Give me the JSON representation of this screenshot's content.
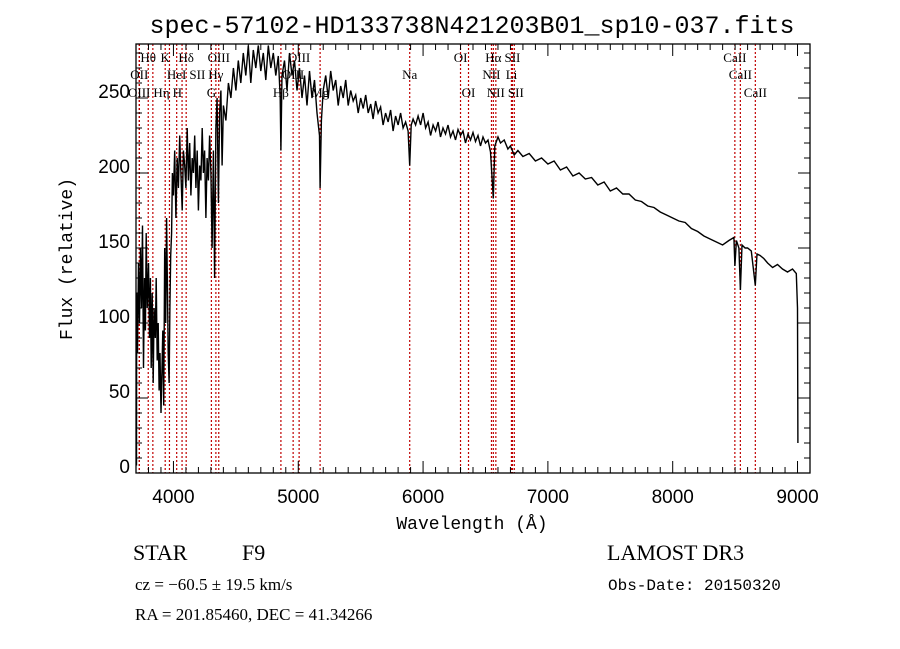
{
  "chart_data": {
    "type": "line",
    "title": "spec-57102-HD133738N421203B01_sp10-037.fits",
    "xlabel": "Wavelength (Å)",
    "ylabel": "Flux (relative)",
    "xlim": [
      3700,
      9100
    ],
    "ylim": [
      0,
      286
    ],
    "xticks": [
      4000,
      5000,
      6000,
      7000,
      8000,
      9000
    ],
    "yticks": [
      0,
      50,
      100,
      150,
      200,
      250
    ],
    "grid": false,
    "line_color": "#000000",
    "marker_color": "#c00000",
    "spectrum": [
      [
        3704,
        5
      ],
      [
        3706,
        120
      ],
      [
        3712,
        80
      ],
      [
        3720,
        140
      ],
      [
        3728,
        100
      ],
      [
        3736,
        150
      ],
      [
        3744,
        110
      ],
      [
        3752,
        165
      ],
      [
        3760,
        70
      ],
      [
        3768,
        130
      ],
      [
        3775,
        95
      ],
      [
        3782,
        160
      ],
      [
        3790,
        110
      ],
      [
        3800,
        140
      ],
      [
        3808,
        90
      ],
      [
        3815,
        130
      ],
      [
        3822,
        70
      ],
      [
        3830,
        120
      ],
      [
        3838,
        60
      ],
      [
        3845,
        110
      ],
      [
        3855,
        90
      ],
      [
        3862,
        130
      ],
      [
        3870,
        75
      ],
      [
        3878,
        100
      ],
      [
        3885,
        55
      ],
      [
        3892,
        80
      ],
      [
        3900,
        40
      ],
      [
        3908,
        70
      ],
      [
        3915,
        95
      ],
      [
        3922,
        45
      ],
      [
        3930,
        150
      ],
      [
        3938,
        100
      ],
      [
        3945,
        170
      ],
      [
        3952,
        120
      ],
      [
        3958,
        80
      ],
      [
        3965,
        60
      ],
      [
        3972,
        110
      ],
      [
        3978,
        145
      ],
      [
        3985,
        160
      ],
      [
        3992,
        200
      ],
      [
        4000,
        185
      ],
      [
        4010,
        215
      ],
      [
        4020,
        170
      ],
      [
        4030,
        210
      ],
      [
        4040,
        190
      ],
      [
        4050,
        225
      ],
      [
        4060,
        200
      ],
      [
        4070,
        175
      ],
      [
        4080,
        215
      ],
      [
        4090,
        205
      ],
      [
        4100,
        190
      ],
      [
        4110,
        230
      ],
      [
        4120,
        195
      ],
      [
        4130,
        220
      ],
      [
        4140,
        185
      ],
      [
        4150,
        210
      ],
      [
        4160,
        200
      ],
      [
        4170,
        225
      ],
      [
        4180,
        190
      ],
      [
        4190,
        215
      ],
      [
        4200,
        175
      ],
      [
        4210,
        205
      ],
      [
        4220,
        195
      ],
      [
        4230,
        230
      ],
      [
        4240,
        200
      ],
      [
        4250,
        215
      ],
      [
        4260,
        170
      ],
      [
        4270,
        210
      ],
      [
        4280,
        195
      ],
      [
        4290,
        225
      ],
      [
        4300,
        200
      ],
      [
        4310,
        150
      ],
      [
        4320,
        215
      ],
      [
        4330,
        130
      ],
      [
        4340,
        230
      ],
      [
        4350,
        250
      ],
      [
        4360,
        180
      ],
      [
        4370,
        240
      ],
      [
        4380,
        255
      ],
      [
        4390,
        205
      ],
      [
        4400,
        245
      ],
      [
        4420,
        235
      ],
      [
        4440,
        260
      ],
      [
        4460,
        250
      ],
      [
        4480,
        270
      ],
      [
        4500,
        255
      ],
      [
        4520,
        275
      ],
      [
        4540,
        260
      ],
      [
        4560,
        280
      ],
      [
        4580,
        265
      ],
      [
        4600,
        285
      ],
      [
        4620,
        260
      ],
      [
        4640,
        282
      ],
      [
        4660,
        270
      ],
      [
        4680,
        285
      ],
      [
        4700,
        268
      ],
      [
        4720,
        280
      ],
      [
        4740,
        262
      ],
      [
        4760,
        285
      ],
      [
        4780,
        270
      ],
      [
        4800,
        280
      ],
      [
        4820,
        265
      ],
      [
        4840,
        278
      ],
      [
        4855,
        250
      ],
      [
        4861,
        215
      ],
      [
        4870,
        265
      ],
      [
        4890,
        275
      ],
      [
        4910,
        255
      ],
      [
        4930,
        280
      ],
      [
        4950,
        265
      ],
      [
        4970,
        275
      ],
      [
        4990,
        255
      ],
      [
        5010,
        270
      ],
      [
        5030,
        250
      ],
      [
        5050,
        265
      ],
      [
        5070,
        245
      ],
      [
        5090,
        268
      ],
      [
        5110,
        250
      ],
      [
        5130,
        262
      ],
      [
        5150,
        240
      ],
      [
        5170,
        225
      ],
      [
        5175,
        190
      ],
      [
        5185,
        235
      ],
      [
        5200,
        255
      ],
      [
        5220,
        265
      ],
      [
        5240,
        250
      ],
      [
        5260,
        268
      ],
      [
        5280,
        255
      ],
      [
        5300,
        262
      ],
      [
        5320,
        245
      ],
      [
        5340,
        258
      ],
      [
        5360,
        250
      ],
      [
        5380,
        262
      ],
      [
        5400,
        245
      ],
      [
        5420,
        255
      ],
      [
        5440,
        248
      ],
      [
        5460,
        252
      ],
      [
        5480,
        240
      ],
      [
        5500,
        250
      ],
      [
        5520,
        243
      ],
      [
        5540,
        252
      ],
      [
        5560,
        240
      ],
      [
        5580,
        246
      ],
      [
        5600,
        236
      ],
      [
        5620,
        248
      ],
      [
        5640,
        240
      ],
      [
        5660,
        244
      ],
      [
        5680,
        232
      ],
      [
        5700,
        240
      ],
      [
        5720,
        234
      ],
      [
        5740,
        242
      ],
      [
        5760,
        228
      ],
      [
        5780,
        238
      ],
      [
        5800,
        232
      ],
      [
        5820,
        240
      ],
      [
        5840,
        230
      ],
      [
        5860,
        234
      ],
      [
        5880,
        228
      ],
      [
        5893,
        205
      ],
      [
        5905,
        232
      ],
      [
        5920,
        236
      ],
      [
        5940,
        232
      ],
      [
        5960,
        238
      ],
      [
        5980,
        232
      ],
      [
        6000,
        240
      ],
      [
        6020,
        230
      ],
      [
        6040,
        234
      ],
      [
        6060,
        225
      ],
      [
        6080,
        232
      ],
      [
        6100,
        228
      ],
      [
        6120,
        234
      ],
      [
        6140,
        224
      ],
      [
        6160,
        230
      ],
      [
        6180,
        226
      ],
      [
        6200,
        232
      ],
      [
        6220,
        224
      ],
      [
        6240,
        228
      ],
      [
        6260,
        222
      ],
      [
        6280,
        229
      ],
      [
        6300,
        225
      ],
      [
        6320,
        228
      ],
      [
        6340,
        220
      ],
      [
        6360,
        226
      ],
      [
        6380,
        222
      ],
      [
        6400,
        227
      ],
      [
        6420,
        221
      ],
      [
        6440,
        225
      ],
      [
        6460,
        218
      ],
      [
        6480,
        224
      ],
      [
        6500,
        220
      ],
      [
        6520,
        222
      ],
      [
        6540,
        214
      ],
      [
        6563,
        183
      ],
      [
        6575,
        218
      ],
      [
        6600,
        224
      ],
      [
        6620,
        220
      ],
      [
        6650,
        222
      ],
      [
        6680,
        216
      ],
      [
        6700,
        218
      ],
      [
        6730,
        212
      ],
      [
        6760,
        215
      ],
      [
        6800,
        211
      ],
      [
        6850,
        213
      ],
      [
        6900,
        208
      ],
      [
        6950,
        210
      ],
      [
        7000,
        206
      ],
      [
        7050,
        208
      ],
      [
        7100,
        202
      ],
      [
        7150,
        204
      ],
      [
        7200,
        198
      ],
      [
        7250,
        200
      ],
      [
        7300,
        196
      ],
      [
        7350,
        197
      ],
      [
        7400,
        192
      ],
      [
        7450,
        194
      ],
      [
        7500,
        188
      ],
      [
        7550,
        190
      ],
      [
        7600,
        186
      ],
      [
        7650,
        186
      ],
      [
        7700,
        182
      ],
      [
        7750,
        181
      ],
      [
        7800,
        178
      ],
      [
        7850,
        177
      ],
      [
        7900,
        174
      ],
      [
        7950,
        172
      ],
      [
        8000,
        170
      ],
      [
        8050,
        168
      ],
      [
        8100,
        167
      ],
      [
        8150,
        163
      ],
      [
        8200,
        161
      ],
      [
        8250,
        158
      ],
      [
        8300,
        156
      ],
      [
        8350,
        154
      ],
      [
        8400,
        152
      ],
      [
        8450,
        155
      ],
      [
        8490,
        157
      ],
      [
        8498,
        138
      ],
      [
        8510,
        155
      ],
      [
        8530,
        150
      ],
      [
        8542,
        122
      ],
      [
        8555,
        152
      ],
      [
        8580,
        150
      ],
      [
        8600,
        150
      ],
      [
        8630,
        148
      ],
      [
        8662,
        125
      ],
      [
        8675,
        146
      ],
      [
        8700,
        145
      ],
      [
        8730,
        143
      ],
      [
        8760,
        140
      ],
      [
        8800,
        137
      ],
      [
        8840,
        139
      ],
      [
        8880,
        136
      ],
      [
        8920,
        134
      ],
      [
        8960,
        136
      ],
      [
        8990,
        133
      ],
      [
        9000,
        110
      ],
      [
        9003,
        20
      ]
    ],
    "lines": [
      {
        "label": "Hθ",
        "wavelength": 3798,
        "row": 1
      },
      {
        "label": "K",
        "wavelength": 3934,
        "row": 1
      },
      {
        "label": "Hδ",
        "wavelength": 4102,
        "row": 1
      },
      {
        "label": "OIII",
        "wavelength": 4363,
        "row": 1
      },
      {
        "label": "OIII",
        "wavelength": 5007,
        "row": 1
      },
      {
        "label": "OI",
        "wavelength": 6300,
        "row": 1
      },
      {
        "label": "Hα",
        "wavelength": 6563,
        "row": 1
      },
      {
        "label": "SII",
        "wavelength": 6716,
        "row": 1
      },
      {
        "label": "CaII",
        "wavelength": 8498,
        "row": 1
      },
      {
        "label": "OII",
        "wavelength": 3727,
        "row": 2
      },
      {
        "label": "HeI",
        "wavelength": 4026,
        "row": 2
      },
      {
        "label": "SII",
        "wavelength": 4069,
        "row": 2
      },
      {
        "label": "Hγ",
        "wavelength": 4340,
        "row": 2
      },
      {
        "label": "OIII",
        "wavelength": 4959,
        "row": 2
      },
      {
        "label": "Na",
        "wavelength": 5893,
        "row": 2
      },
      {
        "label": "NII",
        "wavelength": 6548,
        "row": 2
      },
      {
        "label": "Li",
        "wavelength": 6708,
        "row": 2
      },
      {
        "label": "CaII",
        "wavelength": 8542,
        "row": 2
      },
      {
        "label": "OIII",
        "wavelength": 3726,
        "row": 3
      },
      {
        "label": "Hη",
        "wavelength": 3835,
        "row": 3
      },
      {
        "label": "H",
        "wavelength": 3968,
        "row": 3
      },
      {
        "label": "G",
        "wavelength": 4304,
        "row": 3
      },
      {
        "label": "Hβ",
        "wavelength": 4861,
        "row": 3
      },
      {
        "label": "Mg",
        "wavelength": 5175,
        "row": 3
      },
      {
        "label": "OI",
        "wavelength": 6364,
        "row": 3
      },
      {
        "label": "NII",
        "wavelength": 6583,
        "row": 3
      },
      {
        "label": "SII",
        "wavelength": 6731,
        "row": 3
      },
      {
        "label": "CaII",
        "wavelength": 8662,
        "row": 3
      }
    ]
  },
  "info": {
    "object_class": "STAR",
    "subclass": "F9",
    "survey": "LAMOST DR3",
    "redshift": "cz = −60.5 ± 19.5 km/s",
    "obs_date": "Obs-Date: 20150320",
    "coords": "RA = 201.85460, DEC =  41.34266"
  }
}
